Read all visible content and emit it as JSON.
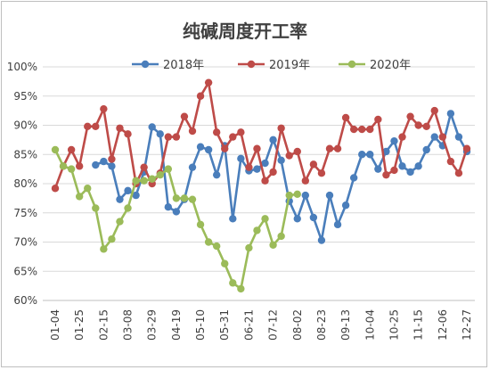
{
  "chart_data": {
    "type": "line",
    "title": "纯碱周度开工率",
    "legend_position": "top",
    "grid": true,
    "ylim": [
      0.6,
      1.0
    ],
    "y_ticks": [
      "60%",
      "65%",
      "70%",
      "75%",
      "80%",
      "85%",
      "90%",
      "95%",
      "100%"
    ],
    "x_ticks": [
      "01-04",
      "01-25",
      "02-15",
      "03-08",
      "03-29",
      "04-19",
      "05-10",
      "05-31",
      "06-21",
      "07-12",
      "08-02",
      "08-23",
      "09-13",
      "10-04",
      "10-25",
      "11-15",
      "12-06",
      "12-27"
    ],
    "series": [
      {
        "name": "2018年",
        "color": "#4a7ebb",
        "values": [
          null,
          null,
          null,
          null,
          null,
          83.2,
          83.8,
          83.0,
          77.3,
          78.8,
          78.0,
          82.0,
          89.7,
          88.5,
          76.0,
          75.2,
          77.3,
          82.8,
          86.3,
          85.8,
          81.5,
          86.5,
          74.0,
          84.3,
          82.2,
          82.5,
          83.5,
          87.5,
          84.0,
          77.0,
          74.0,
          78.0,
          74.2,
          70.3,
          78.0,
          73.0,
          76.3,
          81.0,
          85.0,
          85.0,
          82.5,
          85.5,
          87.3,
          83.0,
          82.0,
          83.0,
          85.8,
          88.0,
          86.5,
          92.0,
          88.0,
          85.5
        ]
      },
      {
        "name": "2019年",
        "color": "#be4b48",
        "values": [
          79.2,
          83.0,
          85.8,
          83.0,
          89.8,
          89.8,
          92.8,
          84.2,
          89.5,
          88.5,
          80.0,
          82.8,
          80.0,
          81.8,
          88.0,
          88.0,
          91.5,
          89.0,
          95.0,
          97.3,
          88.8,
          86.0,
          88.0,
          88.8,
          82.8,
          86.0,
          80.5,
          82.0,
          89.5,
          84.8,
          85.5,
          80.5,
          83.3,
          81.8,
          86.0,
          86.0,
          91.3,
          89.3,
          89.3,
          89.3,
          91.0,
          81.5,
          82.3,
          88.0,
          91.5,
          90.0,
          89.8,
          92.5,
          88.0,
          83.8,
          81.8,
          86.0
        ]
      },
      {
        "name": "2020年",
        "color": "#9bbb59",
        "values": [
          85.8,
          83.0,
          82.5,
          77.8,
          79.2,
          75.8,
          68.8,
          70.5,
          73.5,
          75.8,
          80.5,
          80.5,
          80.8,
          81.5,
          82.5,
          77.5,
          77.5,
          77.3,
          73.0,
          70.0,
          69.3,
          66.3,
          63.0,
          62.0,
          69.0,
          72.0,
          74.0,
          69.5,
          71.0,
          78.0,
          78.2,
          null,
          null,
          null,
          null,
          null,
          null,
          null,
          null,
          null,
          null,
          null,
          null,
          null,
          null,
          null,
          null,
          null,
          null,
          null,
          null,
          null
        ]
      }
    ]
  }
}
